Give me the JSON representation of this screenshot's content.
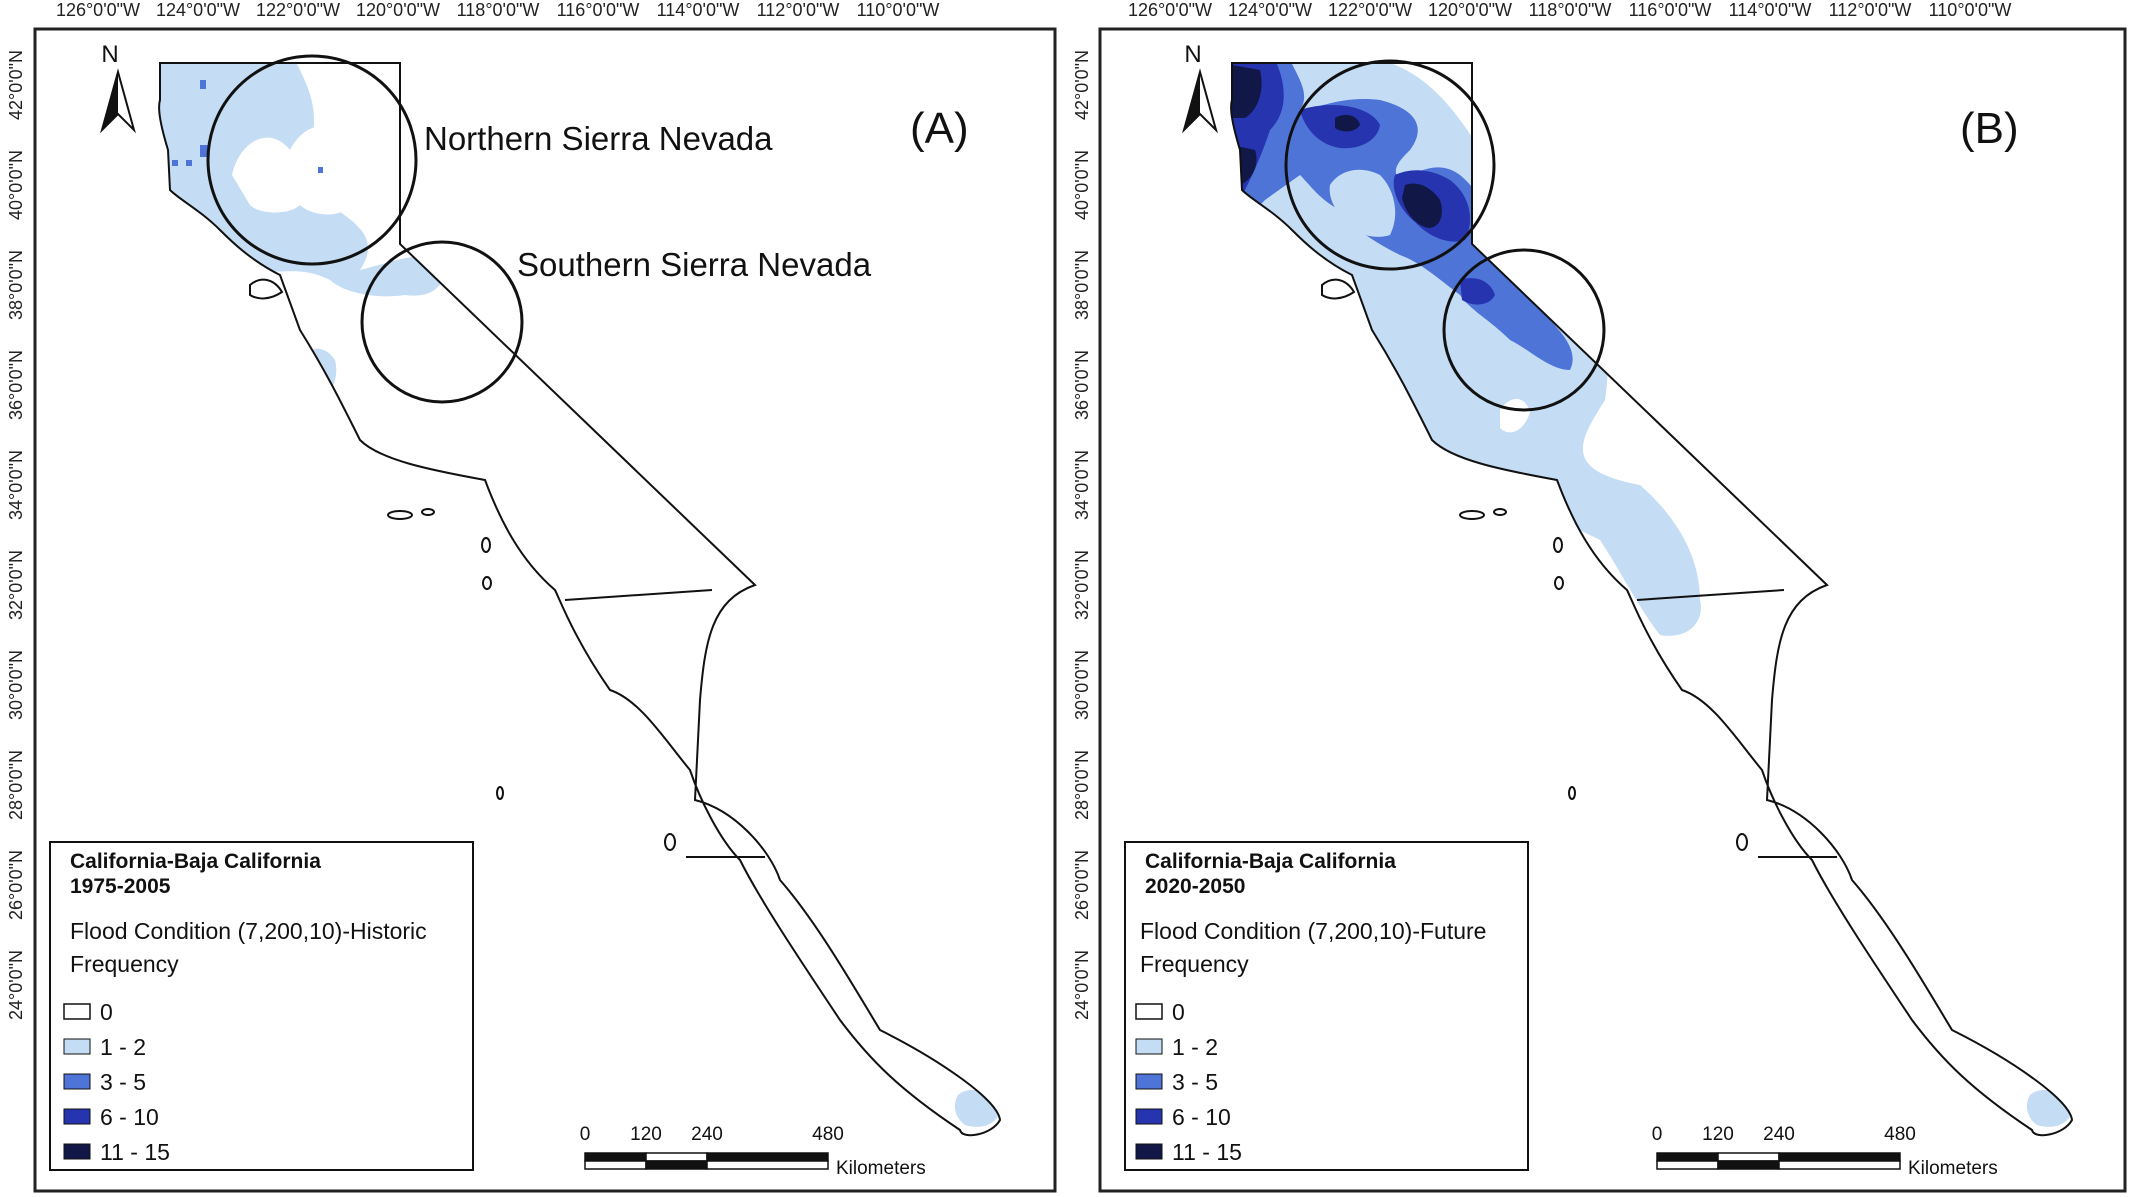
{
  "longitude_ticks": [
    "126°0'0\"W",
    "124°0'0\"W",
    "122°0'0\"W",
    "120°0'0\"W",
    "118°0'0\"W",
    "116°0'0\"W",
    "114°0'0\"W",
    "112°0'0\"W",
    "110°0'0\"W"
  ],
  "latitude_ticks": [
    "42°0'0\"N",
    "40°0'0\"N",
    "38°0'0\"N",
    "36°0'0\"N",
    "34°0'0\"N",
    "32°0'0\"N",
    "30°0'0\"N",
    "28°0'0\"N",
    "26°0'0\"N",
    "24°0'0\"N"
  ],
  "north_arrow_label": "N",
  "colors": {
    "class_0": "#ffffff",
    "class_1_2": "#c5dcf5",
    "class_3_5": "#4e74d8",
    "class_6_10": "#2634b0",
    "class_11_15": "#111848",
    "outline": "#111111"
  },
  "panels": [
    {
      "label": "(A)",
      "callouts": [
        "Northern Sierra Nevada",
        "Southern Sierra Nevada"
      ],
      "legend": {
        "region": "California-Baja California",
        "period": "1975-2005",
        "condition": "Flood Condition (7,200,10)-Historic",
        "measure": "Frequency",
        "classes": [
          "0",
          "1 - 2",
          "3 - 5",
          "6 - 10",
          "11 - 15"
        ]
      },
      "scale": {
        "ticks": [
          "0",
          "120",
          "240",
          "480"
        ],
        "unit": "Kilometers"
      }
    },
    {
      "label": "(B)",
      "legend": {
        "region": "California-Baja California",
        "period": "2020-2050",
        "condition": "Flood Condition (7,200,10)-Future",
        "measure": "Frequency",
        "classes": [
          "0",
          "1 - 2",
          "3 - 5",
          "6 - 10",
          "11 - 15"
        ]
      },
      "scale": {
        "ticks": [
          "0",
          "120",
          "240",
          "480"
        ],
        "unit": "Kilometers"
      }
    }
  ]
}
